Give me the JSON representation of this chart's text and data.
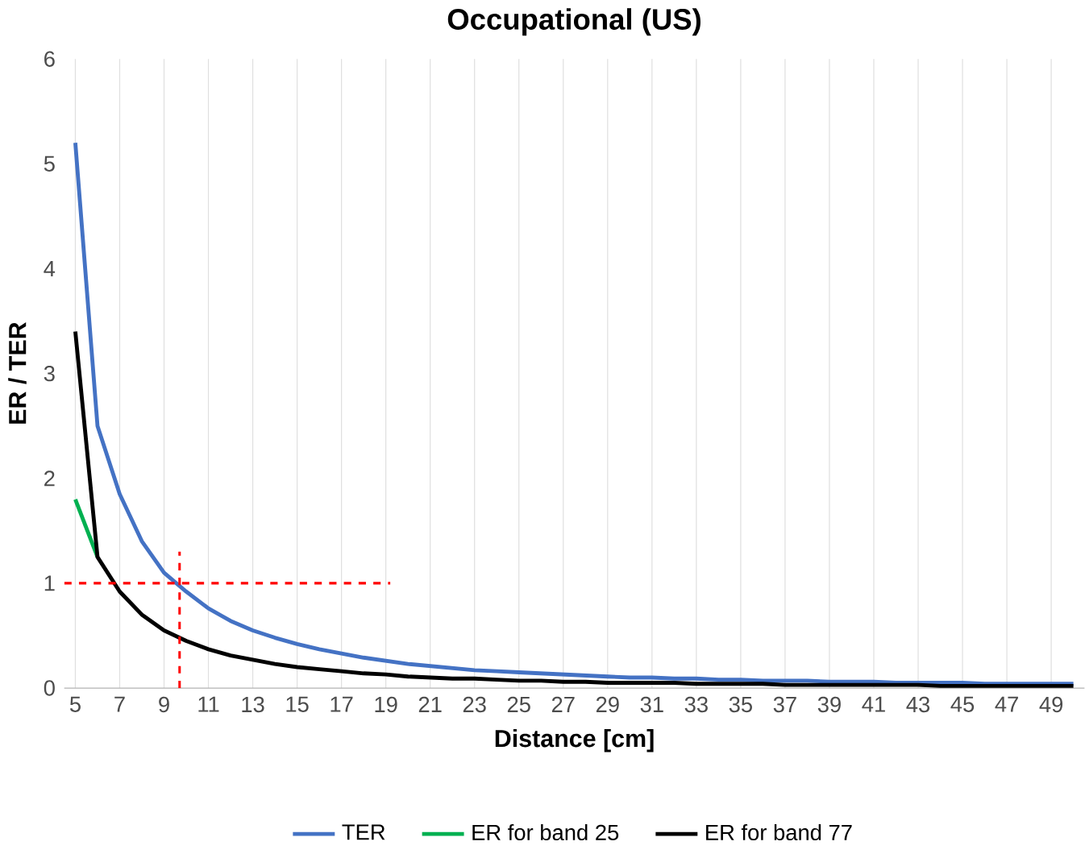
{
  "chart_data": {
    "type": "line",
    "title": "Occupational (US)",
    "xlabel": "Distance [cm]",
    "ylabel": "ER / TER",
    "x": [
      5,
      6,
      7,
      8,
      9,
      10,
      11,
      12,
      13,
      14,
      15,
      16,
      17,
      18,
      19,
      20,
      21,
      22,
      23,
      24,
      25,
      26,
      27,
      28,
      29,
      30,
      31,
      32,
      33,
      34,
      35,
      36,
      37,
      38,
      39,
      40,
      41,
      42,
      43,
      44,
      45,
      46,
      47,
      48,
      49,
      50
    ],
    "xlim": [
      4.5,
      50.5
    ],
    "xticks": [
      5,
      7,
      9,
      11,
      13,
      15,
      17,
      19,
      21,
      23,
      25,
      27,
      29,
      31,
      33,
      35,
      37,
      39,
      41,
      43,
      45,
      47,
      49
    ],
    "ylim": [
      0,
      6
    ],
    "yticks": [
      0,
      1,
      2,
      3,
      4,
      5,
      6
    ],
    "grid": "x",
    "legend": "bottom",
    "marker": "none",
    "line_style": "solid",
    "series": [
      {
        "name": "TER",
        "color": "#4472c4",
        "values": [
          5.2,
          2.5,
          1.85,
          1.4,
          1.1,
          0.92,
          0.76,
          0.64,
          0.55,
          0.48,
          0.42,
          0.37,
          0.33,
          0.29,
          0.26,
          0.23,
          0.21,
          0.19,
          0.17,
          0.16,
          0.15,
          0.14,
          0.13,
          0.12,
          0.11,
          0.1,
          0.1,
          0.09,
          0.09,
          0.08,
          0.08,
          0.07,
          0.07,
          0.07,
          0.06,
          0.06,
          0.06,
          0.05,
          0.05,
          0.05,
          0.05,
          0.04,
          0.04,
          0.04,
          0.04,
          0.04
        ]
      },
      {
        "name": "ER for band 25",
        "color": "#00b050",
        "values": [
          1.8,
          1.25,
          null,
          null,
          null,
          null,
          null,
          null,
          null,
          null,
          null,
          null,
          null,
          null,
          null,
          null,
          null,
          null,
          null,
          null,
          null,
          null,
          null,
          null,
          null,
          null,
          null,
          null,
          null,
          null,
          null,
          null,
          null,
          null,
          null,
          null,
          null,
          null,
          null,
          null,
          null,
          null,
          null,
          null,
          null,
          null
        ]
      },
      {
        "name": "ER for band 77",
        "color": "#000000",
        "values": [
          3.4,
          1.25,
          0.92,
          0.7,
          0.55,
          0.45,
          0.37,
          0.31,
          0.27,
          0.23,
          0.2,
          0.18,
          0.16,
          0.14,
          0.13,
          0.11,
          0.1,
          0.09,
          0.09,
          0.08,
          0.07,
          0.07,
          0.06,
          0.06,
          0.05,
          0.05,
          0.05,
          0.05,
          0.04,
          0.04,
          0.04,
          0.04,
          0.03,
          0.03,
          0.03,
          0.03,
          0.03,
          0.03,
          0.03,
          0.02,
          0.02,
          0.02,
          0.02,
          0.02,
          0.02,
          0.02
        ]
      },
      {
        "type": "line",
        "color": "#ff0000",
        "line_style": "dashed",
        "x": [
          9.7,
          9.7
        ],
        "values": [
          0,
          1.3
        ]
      },
      {
        "type": "line",
        "color": "#ff0000",
        "line_style": "dashed",
        "x": [
          4.5,
          19.2
        ],
        "values": [
          1,
          1
        ]
      }
    ]
  }
}
